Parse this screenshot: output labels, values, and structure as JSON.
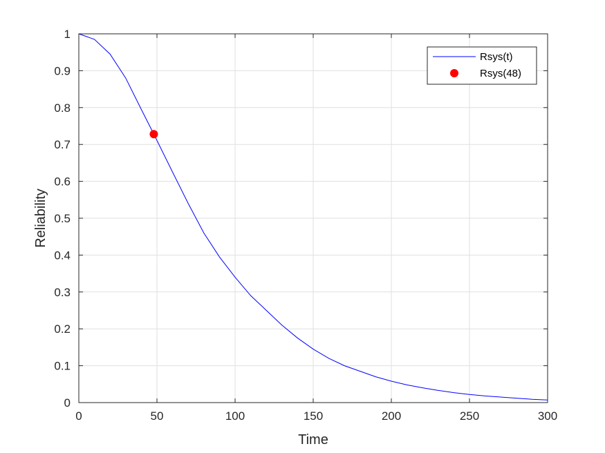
{
  "chart_data": {
    "type": "line",
    "title": "",
    "xlabel": "Time",
    "ylabel": "Reliability",
    "xlim": [
      0,
      300
    ],
    "ylim": [
      0,
      1
    ],
    "xticks": [
      0,
      50,
      100,
      150,
      200,
      250,
      300
    ],
    "yticks": [
      0,
      0.1,
      0.2,
      0.3,
      0.4,
      0.5,
      0.6,
      0.7,
      0.8,
      0.9,
      1
    ],
    "grid": true,
    "legend_position": "top-right",
    "series": [
      {
        "name": "Rsys(t)",
        "kind": "line",
        "color": "#0000ff",
        "x": [
          0,
          10,
          20,
          30,
          40,
          48,
          60,
          70,
          80,
          90,
          100,
          110,
          120,
          130,
          140,
          150,
          160,
          170,
          180,
          190,
          200,
          210,
          220,
          230,
          240,
          250,
          260,
          270,
          280,
          290,
          300
        ],
        "y": [
          1.0,
          0.985,
          0.945,
          0.88,
          0.795,
          0.728,
          0.625,
          0.54,
          0.46,
          0.395,
          0.34,
          0.29,
          0.25,
          0.21,
          0.175,
          0.145,
          0.12,
          0.1,
          0.085,
          0.07,
          0.058,
          0.048,
          0.04,
          0.033,
          0.027,
          0.022,
          0.018,
          0.015,
          0.012,
          0.009,
          0.007
        ]
      },
      {
        "name": "Rsys(48)",
        "kind": "marker",
        "color": "#ff0000",
        "x": [
          48
        ],
        "y": [
          0.728
        ]
      }
    ]
  }
}
